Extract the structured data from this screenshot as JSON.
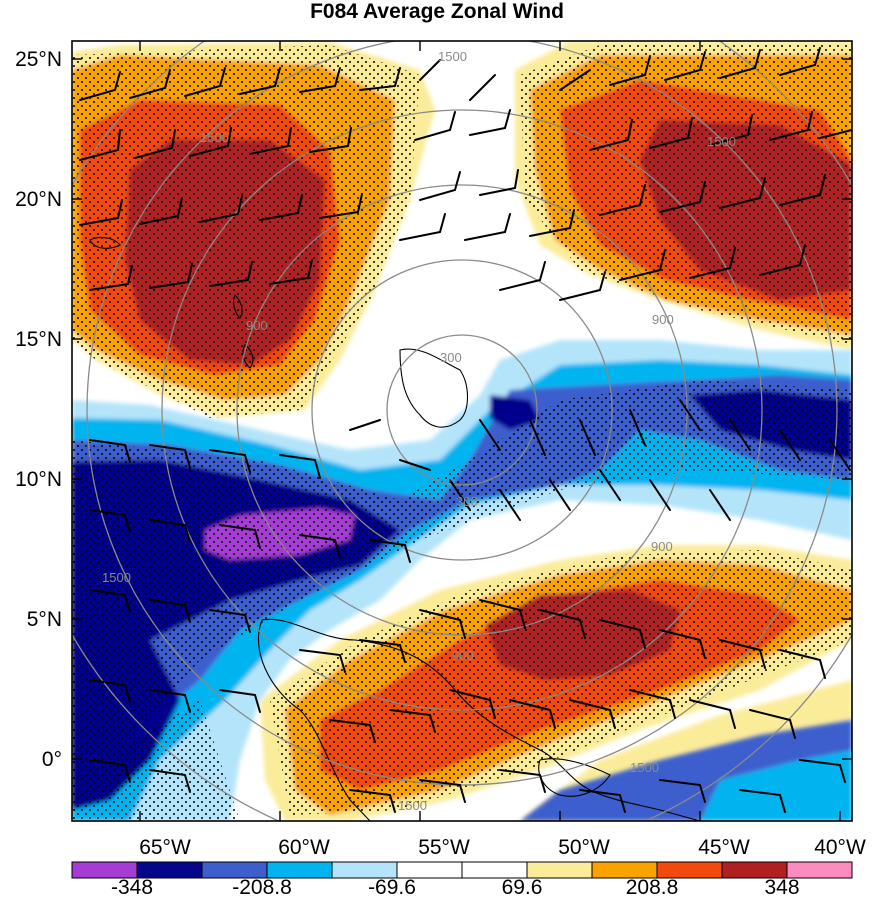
{
  "title": "F084 Average Zonal Wind",
  "lat_labels": [
    "25°N",
    "20°N",
    "15°N",
    "10°N",
    "5°N",
    "0°"
  ],
  "lon_labels": [
    "65°W",
    "60°W",
    "55°W",
    "50°W",
    "45°W",
    "40°W"
  ],
  "range_ring_labels": [
    "1500",
    "1500",
    "900",
    "1500",
    "900",
    "300",
    "300",
    "900",
    "900",
    "1500",
    "1500",
    "1500"
  ],
  "colorbar": {
    "colors": [
      "#a53dd4",
      "#06068c",
      "#3e5ecd",
      "#00b4f0",
      "#b4e4fa",
      "#ffffff",
      "#ffffff",
      "#fbec9a",
      "#f9a200",
      "#f24a0d",
      "#b02020",
      "#fc8cc0"
    ],
    "labels": [
      "-348",
      "-208.8",
      "-69.6",
      "69.6",
      "208.8",
      "348"
    ]
  }
}
